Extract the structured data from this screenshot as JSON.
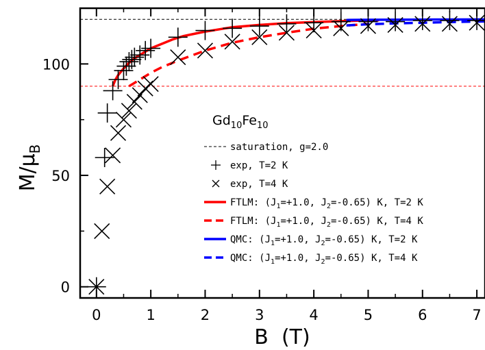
{
  "chart_data": {
    "type": "line",
    "title": "",
    "legend_title": {
      "main": "Gd",
      "sub1": "10",
      "mid": "Fe",
      "sub2": "10"
    },
    "xlabel": "B  (T)",
    "ylabel": {
      "main": "M/μ",
      "sub": "B"
    },
    "xlim": [
      -0.3,
      7.15
    ],
    "ylim": [
      -5,
      125
    ],
    "xticks": [
      0,
      1,
      2,
      3,
      4,
      5,
      6,
      7
    ],
    "yticks": [
      0,
      50,
      100
    ],
    "legend_position": "right",
    "reference_lines": [
      {
        "name": "saturation, g=2.0",
        "y": 120,
        "color": "#000000",
        "style": "dashed",
        "in_legend": true
      },
      {
        "name": "",
        "y": 90,
        "color": "#ff0000",
        "style": "dashed",
        "in_legend": false
      }
    ],
    "series": [
      {
        "name": "exp, T=2 K",
        "kind": "plus",
        "color": "#000000",
        "x": [
          0.0,
          0.15,
          0.2,
          0.3,
          0.4,
          0.5,
          0.55,
          0.6,
          0.65,
          0.7,
          0.8,
          0.9,
          1.0,
          1.5,
          2.0,
          2.5,
          3.0,
          3.5,
          4.0,
          4.5,
          5.0,
          5.5,
          6.0,
          6.5,
          7.0
        ],
        "y": [
          0,
          58,
          78,
          88,
          93,
          97,
          99,
          101,
          102,
          103,
          104,
          106,
          107,
          112,
          115,
          116,
          117,
          118,
          118.5,
          119,
          119,
          119,
          119.5,
          119.5,
          119.5
        ]
      },
      {
        "name": "exp, T=4 K",
        "kind": "cross",
        "color": "#000000",
        "x": [
          0.0,
          0.1,
          0.2,
          0.3,
          0.4,
          0.5,
          0.6,
          0.7,
          0.8,
          0.9,
          1.0,
          1.5,
          2.0,
          2.5,
          3.0,
          3.5,
          4.0,
          4.5,
          5.0,
          5.5,
          6.0,
          6.5,
          7.0
        ],
        "y": [
          0,
          25,
          45,
          59,
          69,
          75,
          79,
          83,
          86,
          89,
          91,
          103,
          106,
          110,
          112,
          114,
          115,
          116,
          117,
          117.5,
          118,
          118,
          118.5
        ]
      },
      {
        "name": "FTLM: (J1=+1.0, J2=-0.65) K, T=2 K",
        "kind": "line",
        "style": "solid",
        "color": "#ff0000",
        "x": [
          0.3,
          0.35,
          0.4,
          0.5,
          0.6,
          0.7,
          0.8,
          0.9,
          1.0,
          1.2,
          1.4,
          1.6,
          1.8,
          2.0,
          2.5,
          3.0,
          3.5,
          4.0,
          4.5,
          5.0,
          5.2
        ],
        "y": [
          90,
          93,
          95,
          98,
          100.5,
          102.5,
          104,
          105.5,
          107,
          109,
          111,
          112.5,
          113.5,
          114.5,
          116.5,
          117.5,
          118.3,
          118.8,
          119.2,
          119.5,
          119.6
        ]
      },
      {
        "name": "FTLM: (J1=+1.0, J2=-0.65) K, T=4 K",
        "kind": "line",
        "style": "dashed",
        "color": "#ff0000",
        "x": [
          0.6,
          0.8,
          1.0,
          1.2,
          1.5,
          2.0,
          2.5,
          3.0,
          3.5,
          4.0,
          4.5,
          5.0
        ],
        "y": [
          90,
          93,
          96,
          98.5,
          101.5,
          106,
          109.5,
          112,
          114,
          115.8,
          117,
          118
        ]
      },
      {
        "name": "QMC: (J1=+1.0, J2=-0.65) K, T=2 K",
        "kind": "line",
        "style": "solid",
        "color": "#0000ff",
        "x": [
          4.6,
          5.0,
          5.5,
          6.0,
          6.5,
          7.0,
          7.15
        ],
        "y": [
          119.7,
          119.8,
          119.85,
          119.9,
          119.92,
          119.95,
          119.96
        ]
      },
      {
        "name": "QMC: (J1=+1.0, J2=-0.65) K, T=4 K",
        "kind": "line",
        "style": "dashed",
        "color": "#0000ff",
        "x": [
          4.6,
          5.0,
          5.5,
          6.0,
          6.5,
          7.0,
          7.15
        ],
        "y": [
          117.3,
          117.8,
          118.2,
          118.5,
          118.8,
          119.0,
          119.1
        ]
      }
    ],
    "legend": [
      {
        "kind": "dashed-thin",
        "color": "#000000",
        "text": "saturation, g=2.0"
      },
      {
        "kind": "plus",
        "color": "#000000",
        "text": "exp, T=2 K"
      },
      {
        "kind": "cross",
        "color": "#000000",
        "text": "exp, T=4 K"
      },
      {
        "kind": "solid",
        "color": "#ff0000",
        "parts": [
          "FTLM: (J",
          "1",
          "=+1.0, J",
          "2",
          "=-0.65) K, T=2 K"
        ]
      },
      {
        "kind": "dashed",
        "color": "#ff0000",
        "parts": [
          "FTLM: (J",
          "1",
          "=+1.0, J",
          "2",
          "=-0.65) K, T=4 K"
        ]
      },
      {
        "kind": "solid",
        "color": "#0000ff",
        "parts": [
          "QMC: (J",
          "1",
          "=+1.0, J",
          "2",
          "=-0.65) K, T=2 K"
        ]
      },
      {
        "kind": "dashed",
        "color": "#0000ff",
        "parts": [
          "QMC: (J",
          "1",
          "=+1.0, J",
          "2",
          "=-0.65) K, T=4 K"
        ]
      }
    ]
  }
}
